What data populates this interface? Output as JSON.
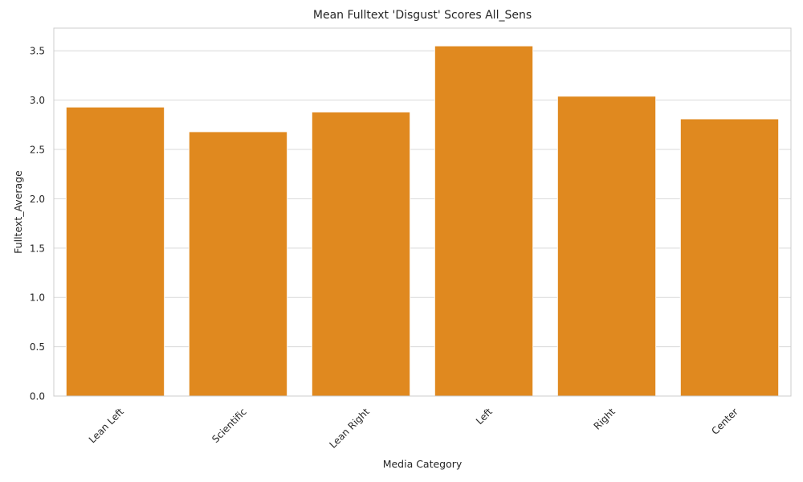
{
  "chart_data": {
    "type": "bar",
    "title": "Mean Fulltext 'Disgust' Scores All_Sens",
    "xlabel": "Media Category",
    "ylabel": "Fulltext_Average",
    "categories": [
      "Lean Left",
      "Scientific",
      "Lean Right",
      "Left",
      "Right",
      "Center"
    ],
    "values": [
      2.93,
      2.68,
      2.88,
      3.55,
      3.04,
      2.81
    ],
    "ylim": [
      0,
      3.73
    ],
    "yticks": [
      0.0,
      0.5,
      1.0,
      1.5,
      2.0,
      2.5,
      3.0,
      3.5
    ],
    "ytick_labels": [
      "0.0",
      "0.5",
      "1.0",
      "1.5",
      "2.0",
      "2.5",
      "3.0",
      "3.5"
    ],
    "grid": true,
    "bar_color": "#e0891f",
    "grid_color": "#d9d9d9",
    "spine_color": "#cccccc"
  }
}
